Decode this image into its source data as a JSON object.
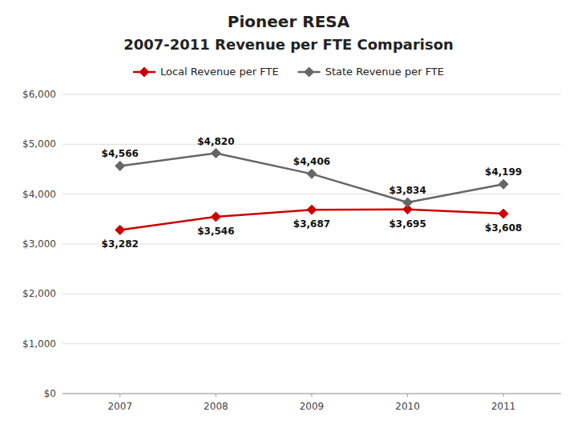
{
  "chart_data": {
    "type": "line",
    "title": "Pioneer RESA",
    "subtitle": "2007-2011 Revenue per FTE Comparison",
    "x": [
      2007,
      2008,
      2009,
      2010,
      2011
    ],
    "xlim": [
      2006.4,
      2011.6
    ],
    "xticks": [
      2007,
      2008,
      2009,
      2010,
      2011
    ],
    "ylim": [
      0,
      6000
    ],
    "yticks": [
      {
        "value": 0,
        "label": "$0"
      },
      {
        "value": 1000,
        "label": "$1,000"
      },
      {
        "value": 2000,
        "label": "$2,000"
      },
      {
        "value": 3000,
        "label": "$3,000"
      },
      {
        "value": 4000,
        "label": "$4,000"
      },
      {
        "value": 5000,
        "label": "$5,000"
      },
      {
        "value": 6000,
        "label": "$6,000"
      }
    ],
    "grid": true,
    "legend": "top",
    "data_labels": true,
    "marker": "diamond",
    "series": [
      {
        "name": "Local Revenue per FTE",
        "color": "#cc0000",
        "values": [
          3282,
          3546,
          3687,
          3695,
          3608
        ],
        "value_labels": [
          "$3,282",
          "$3,546",
          "$3,687",
          "$3,695",
          "$3,608"
        ]
      },
      {
        "name": "State Revenue per FTE",
        "color": "#666666",
        "values": [
          4566,
          4820,
          4406,
          3834,
          4199
        ],
        "value_labels": [
          "$4,566",
          "$4,820",
          "$4,406",
          "$3,834",
          "$4,199"
        ]
      }
    ]
  }
}
